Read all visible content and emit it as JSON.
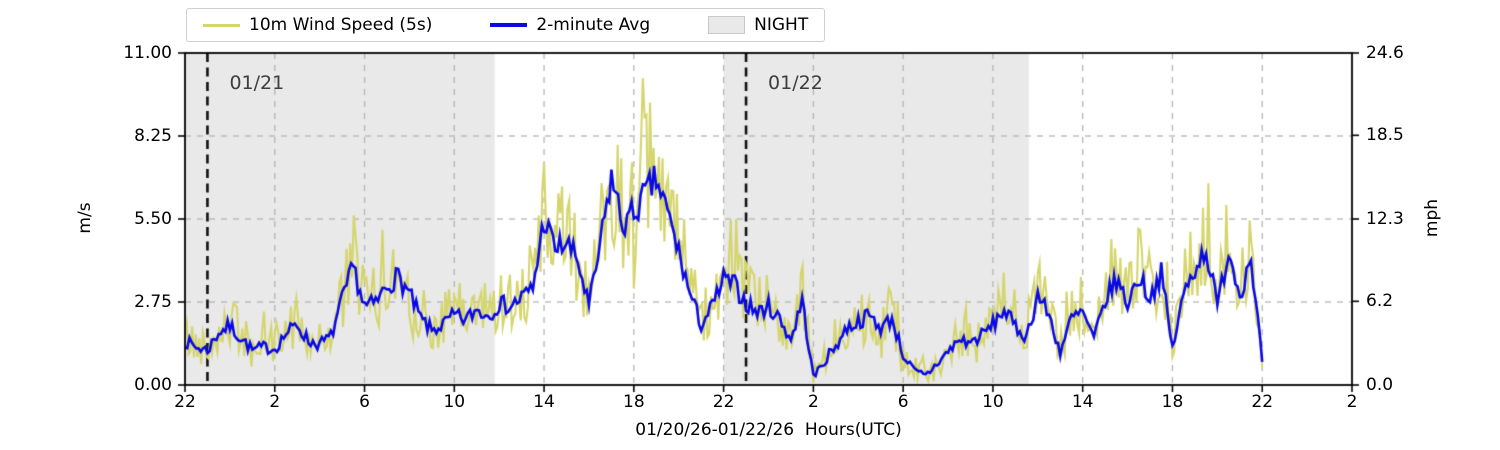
{
  "legend": {
    "items": [
      {
        "label": "10m Wind Speed (5s)",
        "type": "line",
        "color": "#d5d56e"
      },
      {
        "label": "2-minute Avg",
        "type": "line",
        "color": "#0909e6"
      },
      {
        "label": "NIGHT",
        "type": "patch",
        "color": "#e9e9e9"
      }
    ]
  },
  "chart_data": {
    "type": "line",
    "title": "",
    "xlabel": "01/20/26-01/22/26  Hours(UTC)",
    "grid": true,
    "legend_position": "top",
    "x_axis": {
      "start": "22:00 UTC on 01/20/26",
      "range_hours": [
        0,
        52
      ],
      "tick_hours_after_start": [
        0,
        4,
        8,
        12,
        16,
        20,
        24,
        28,
        32,
        36,
        40,
        44,
        48,
        52
      ],
      "tick_labels": [
        "22",
        "2",
        "6",
        "10",
        "14",
        "18",
        "22",
        "2",
        "6",
        "10",
        "14",
        "18",
        "22",
        "2"
      ]
    },
    "y_left": {
      "label": "m/s",
      "range": [
        0,
        11
      ],
      "tick_values": [
        0,
        2.75,
        5.5,
        8.25,
        11.0
      ],
      "tick_labels": [
        "0.00",
        "2.75",
        "5.50",
        "8.25",
        "11.00"
      ]
    },
    "y_right": {
      "label": "mph",
      "range": [
        0,
        24.6
      ],
      "tick_values": [
        0,
        6.2,
        12.3,
        18.5,
        24.6
      ],
      "tick_labels": [
        "0.0",
        "6.2",
        "12.3",
        "18.5",
        "24.6"
      ]
    },
    "night_regions_hours": [
      [
        0,
        13.8
      ],
      [
        24,
        37.6
      ]
    ],
    "night_color": "#e9e9e9",
    "day_markers": [
      {
        "label": "01/21",
        "hour_after_start": 1
      },
      {
        "label": "01/22",
        "hour_after_start": 25
      }
    ],
    "series": [
      {
        "name": "2-minute Avg",
        "color": "#0909e6",
        "x_start_hour": 0,
        "x_step_hours": 0.5,
        "values": [
          1.45,
          1.25,
          1.15,
          1.75,
          1.95,
          1.55,
          1.15,
          1.25,
          1.2,
          1.7,
          2.0,
          1.45,
          1.35,
          1.6,
          2.8,
          3.9,
          2.6,
          2.7,
          3.3,
          3.6,
          3.0,
          2.2,
          1.8,
          2.0,
          2.3,
          2.15,
          2.5,
          2.3,
          2.7,
          2.6,
          2.9,
          3.2,
          5.5,
          4.5,
          4.7,
          4.1,
          2.6,
          4.6,
          6.9,
          5.3,
          5.7,
          6.3,
          6.8,
          5.7,
          4.4,
          3.0,
          2.0,
          2.6,
          3.5,
          3.3,
          2.7,
          2.4,
          2.6,
          2.2,
          1.5,
          2.8,
          0.25,
          0.8,
          1.3,
          1.9,
          2.1,
          2.3,
          1.9,
          2.2,
          1.0,
          0.45,
          0.3,
          0.7,
          1.1,
          1.5,
          1.4,
          1.65,
          2.0,
          2.5,
          1.9,
          1.6,
          3.0,
          2.3,
          1.1,
          2.2,
          2.4,
          1.5,
          2.8,
          3.5,
          2.7,
          3.6,
          2.9,
          3.7,
          1.2,
          3.0,
          3.9,
          4.5,
          2.6,
          4.5,
          3.0,
          4.3,
          0.75
        ]
      },
      {
        "name": "10m Wind Speed (5s)",
        "color": "#d5d56e",
        "derived_from": "2-minute Avg",
        "gust_model": {
          "amp_base": 0.25,
          "amp_slope": 0.32,
          "up_bias": 1.07,
          "down_bias": 0.82,
          "spike_prob": 0.14,
          "spike_gain": 1.5
        }
      }
    ]
  }
}
